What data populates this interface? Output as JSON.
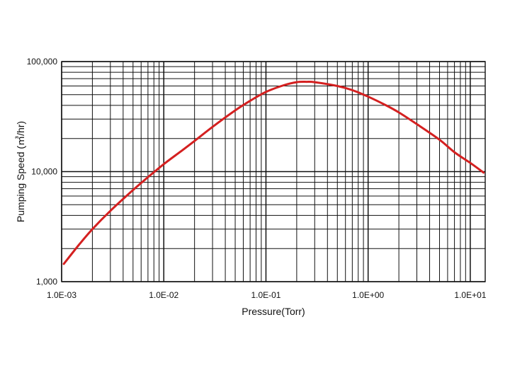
{
  "chart_data": {
    "type": "line",
    "title": "",
    "xlabel": "Pressure(Torr)",
    "ylabel": "Pumping Speed (㎥/hr)",
    "xscale": "log",
    "yscale": "log",
    "xlim": [
      0.001,
      14
    ],
    "ylim": [
      1000,
      100000
    ],
    "grid": true,
    "legend": "none",
    "x_ticks": [
      {
        "value": 0.001,
        "label": "1.0E-03"
      },
      {
        "value": 0.01,
        "label": "1.0E-02"
      },
      {
        "value": 0.1,
        "label": "1.0E-01"
      },
      {
        "value": 1,
        "label": "1.0E+00"
      },
      {
        "value": 10,
        "label": "1.0E+01"
      }
    ],
    "y_ticks": [
      {
        "value": 1000,
        "label": "1,000"
      },
      {
        "value": 10000,
        "label": "10,000"
      },
      {
        "value": 100000,
        "label": "100,000"
      }
    ],
    "series": [
      {
        "color": "#d42020",
        "x": [
          0.00105,
          0.0015,
          0.002,
          0.003,
          0.005,
          0.007,
          0.01,
          0.015,
          0.02,
          0.03,
          0.05,
          0.07,
          0.1,
          0.15,
          0.2,
          0.25,
          0.3,
          0.5,
          0.7,
          1,
          1.5,
          2,
          3,
          5,
          7,
          10,
          13.5
        ],
        "y": [
          1450,
          2200,
          3000,
          4400,
          6800,
          8900,
          11700,
          15500,
          19000,
          25500,
          36000,
          44000,
          53000,
          61000,
          65000,
          65500,
          65000,
          60000,
          55000,
          48000,
          40000,
          34500,
          27000,
          19500,
          15000,
          12000,
          9800
        ]
      }
    ]
  }
}
